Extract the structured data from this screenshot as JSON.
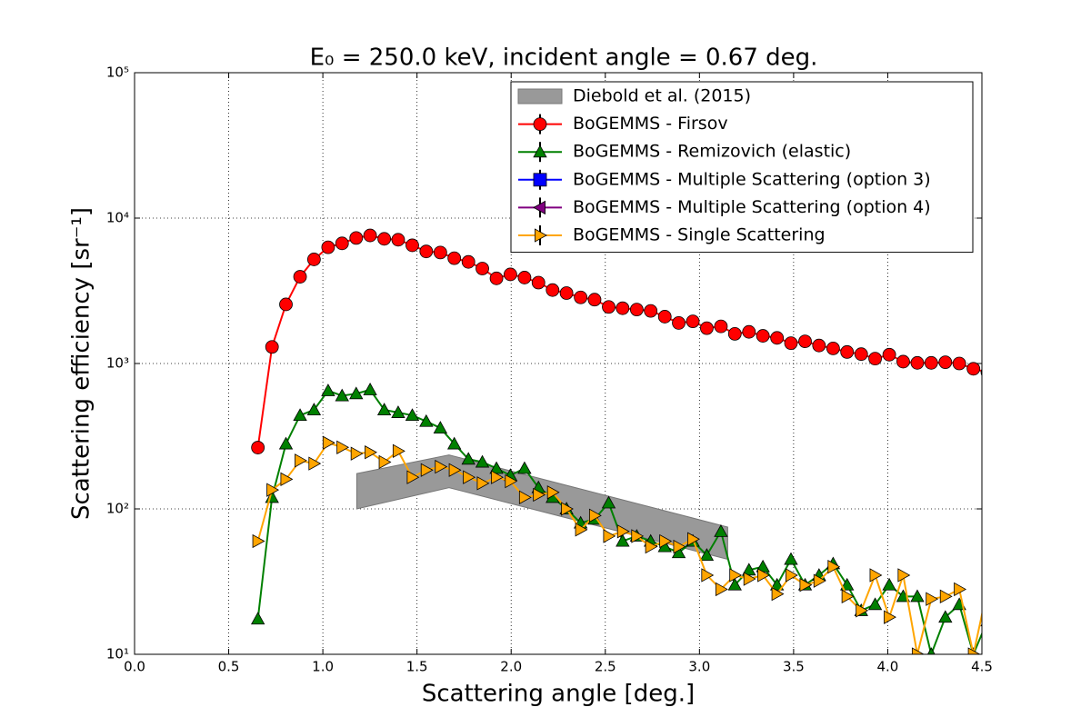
{
  "chart_data": {
    "type": "line",
    "title": "E₀ = 250.0 keV, incident angle = 0.67 deg.",
    "xlabel": "Scattering angle [deg.]",
    "ylabel": "Scattering efficiency [sr⁻¹]",
    "ylog": true,
    "grid": true,
    "legend": "upper right",
    "xlim": [
      0,
      4.5
    ],
    "ylim": [
      10,
      100000
    ],
    "xticks": [
      {
        "value": 0,
        "label": "0.0"
      },
      0.5,
      {
        "value": 1,
        "label": "1.0"
      },
      1.5,
      {
        "value": 2,
        "label": "2.0"
      },
      2.5,
      {
        "value": 3,
        "label": "3.0"
      },
      3.5,
      {
        "value": 4,
        "label": "4.0"
      },
      4.5
    ],
    "yticks": [
      {
        "value": 10,
        "label": "10¹"
      },
      {
        "value": 100,
        "label": "10²"
      },
      {
        "value": 1000,
        "label": "10³"
      },
      {
        "value": 10000,
        "label": "10⁴"
      },
      {
        "value": 100000,
        "label": "10⁵"
      }
    ],
    "x": [
      0.655,
      0.73,
      0.804,
      0.879,
      0.953,
      1.028,
      1.102,
      1.177,
      1.251,
      1.326,
      1.4,
      1.475,
      1.549,
      1.624,
      1.698,
      1.773,
      1.847,
      1.922,
      1.996,
      2.071,
      2.145,
      2.22,
      2.294,
      2.369,
      2.443,
      2.518,
      2.592,
      2.667,
      2.741,
      2.816,
      2.89,
      2.965,
      3.039,
      3.114,
      3.188,
      3.263,
      3.337,
      3.412,
      3.486,
      3.561,
      3.635,
      3.71,
      3.784,
      3.859,
      3.933,
      4.008,
      4.082,
      4.157,
      4.231,
      4.306,
      4.38,
      4.455,
      4.529
    ],
    "series": [
      {
        "name": "Diebold et al. (2015)",
        "type": "band",
        "color": "#999999",
        "x": [
          1.18,
          1.67,
          3.15
        ],
        "upper": [
          175,
          235,
          75
        ],
        "lower": [
          100,
          140,
          45
        ]
      },
      {
        "name": "BoGEMMS - Firsov",
        "color": "#ff0000",
        "marker": "circle",
        "values": [
          264,
          1300,
          2550,
          3950,
          5200,
          6300,
          6700,
          7300,
          7600,
          7200,
          7100,
          6500,
          5900,
          5800,
          5300,
          5000,
          4500,
          3850,
          4100,
          3900,
          3600,
          3200,
          3050,
          2850,
          2750,
          2450,
          2400,
          2350,
          2300,
          2100,
          1900,
          1950,
          1750,
          1800,
          1600,
          1650,
          1550,
          1500,
          1380,
          1420,
          1330,
          1270,
          1200,
          1160,
          1080,
          1150,
          1030,
          1010,
          1010,
          1020,
          1000,
          920,
          870
        ]
      },
      {
        "name": "BoGEMMS - Remizovich (elastic)",
        "color": "#008000",
        "marker": "triangle",
        "values": [
          17.5,
          120,
          280,
          440,
          480,
          650,
          600,
          620,
          660,
          480,
          460,
          440,
          400,
          360,
          280,
          220,
          210,
          190,
          170,
          190,
          140,
          120,
          100,
          80,
          85,
          110,
          60,
          65,
          60,
          55,
          50,
          60,
          48,
          70,
          30,
          38,
          40,
          30,
          45,
          30,
          35,
          42,
          30,
          20,
          22,
          30,
          25,
          25,
          10,
          18,
          22,
          10,
          17
        ]
      },
      {
        "name": "BoGEMMS - Multiple Scattering (option 3)",
        "color": "#0000ff",
        "marker": "square"
      },
      {
        "name": "BoGEMMS - Multiple Scattering (option 4)",
        "color": "#800080",
        "marker": "left"
      },
      {
        "name": "BoGEMMS - Single Scattering",
        "color": "#ffa500",
        "marker": "right",
        "values": [
          60,
          135,
          160,
          215,
          205,
          285,
          265,
          240,
          245,
          210,
          250,
          165,
          185,
          195,
          185,
          165,
          150,
          165,
          155,
          120,
          125,
          130,
          100,
          72,
          90,
          65,
          70,
          65,
          55,
          60,
          55,
          62,
          35,
          28,
          35,
          33,
          35,
          26,
          35,
          30,
          32,
          40,
          25,
          20,
          35,
          18,
          35,
          10,
          24,
          25,
          28,
          10,
          28
        ]
      }
    ]
  }
}
